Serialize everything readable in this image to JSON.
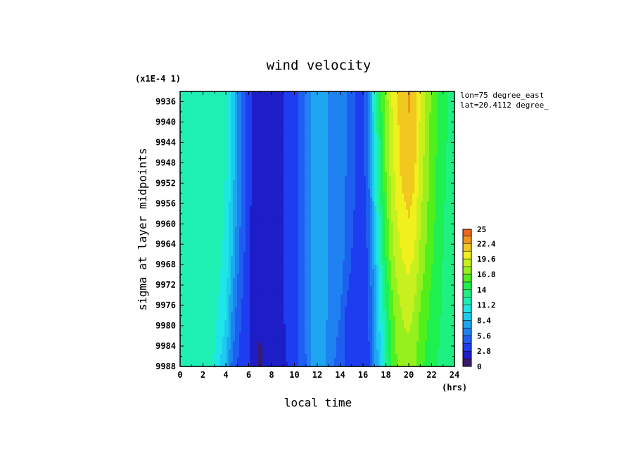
{
  "chart_data": {
    "type": "heatmap",
    "title": "wind velocity",
    "xlabel": "local time",
    "x_units": "(hrs)",
    "ylabel": "sigma at layer midpoints",
    "y_scale_note": "(x1E-4 1)",
    "annotations": [
      "lon=75 degree_east",
      "lat=20.4112 degree_"
    ],
    "xlim": [
      0,
      24
    ],
    "ylim": [
      9988,
      9934
    ],
    "x_ticks": [
      "0",
      "2",
      "4",
      "6",
      "8",
      "10",
      "12",
      "14",
      "16",
      "18",
      "20",
      "22",
      "24"
    ],
    "y_ticks": [
      "9936",
      "9940",
      "9944",
      "9948",
      "9952",
      "9956",
      "9960",
      "9964",
      "9968",
      "9972",
      "9976",
      "9980",
      "9984",
      "9988"
    ],
    "colorbar": {
      "min": 0,
      "max": 25,
      "tick_labels": [
        "25",
        "22.4",
        "19.6",
        "16.8",
        "14",
        "11.2",
        "8.4",
        "5.6",
        "2.8",
        "0"
      ],
      "levels": [
        0,
        1.4,
        2.8,
        4.2,
        5.6,
        7,
        8.4,
        9.8,
        11.2,
        12.6,
        14,
        15.4,
        16.8,
        18.2,
        19.6,
        21,
        22.4,
        23.8,
        25
      ],
      "colors": [
        "#3a1a6a",
        "#1e1ec8",
        "#1e3cf0",
        "#1e5ef0",
        "#1e82f0",
        "#1ea6f0",
        "#1ecaf0",
        "#1ee6e6",
        "#1ef0b4",
        "#1ef082",
        "#1ef050",
        "#50f01e",
        "#96f01e",
        "#c8f01e",
        "#f0f01e",
        "#f0c81e",
        "#f0961e",
        "#f0641e",
        "#e63c1e"
      ]
    },
    "x": [
      0,
      1,
      2,
      3,
      4,
      4.5,
      5,
      5.5,
      6,
      6.5,
      7,
      7.5,
      8,
      9,
      10,
      10.5,
      11,
      11.5,
      12,
      12.5,
      13,
      13.5,
      14,
      14.5,
      15,
      15.5,
      16,
      16.5,
      17,
      17.5,
      18,
      18.5,
      19,
      19.5,
      20,
      20.5,
      21,
      22,
      23,
      24
    ],
    "y": [
      9934,
      9950,
      9966,
      9976,
      9988
    ],
    "values_by_sigma": {
      "9934": [
        12.5,
        12.5,
        12.5,
        11.8,
        11.2,
        9.5,
        7,
        5.2,
        3.2,
        2.3,
        1.8,
        2.1,
        2.6,
        2.8,
        3,
        4.5,
        5.8,
        7.2,
        8,
        7.8,
        6.8,
        6.5,
        6.8,
        5.6,
        4.8,
        4,
        3.6,
        6,
        11.2,
        15,
        17.5,
        19.6,
        21,
        22,
        22.6,
        22,
        19.6,
        16.5,
        14.5,
        13.5
      ],
      "9950": [
        12.5,
        12.5,
        12.5,
        11.8,
        11.2,
        9.5,
        7,
        5.2,
        3.2,
        2.3,
        1.7,
        2.1,
        2.6,
        2.8,
        3,
        4.5,
        5.8,
        7.2,
        8,
        7.8,
        6.8,
        6.5,
        6.8,
        5.6,
        4.8,
        4,
        3.6,
        5.6,
        10,
        14,
        16.8,
        18.8,
        20.5,
        21.4,
        22,
        21.3,
        19,
        16.2,
        14.2,
        13.4
      ],
      "9966": [
        12.5,
        12.5,
        12.5,
        11.8,
        11,
        8.6,
        6.2,
        4.6,
        3,
        2.2,
        1.6,
        2,
        2.6,
        2.8,
        3,
        4.5,
        5.8,
        7.2,
        8,
        7.8,
        6.8,
        6.5,
        6.6,
        5.2,
        4.2,
        3.6,
        3.4,
        4.5,
        8,
        12,
        15.4,
        17.5,
        19,
        19.8,
        20.2,
        19.6,
        17.8,
        15.6,
        14,
        13.3
      ],
      "9976": [
        12.5,
        12.5,
        12.5,
        11.8,
        10.2,
        7.2,
        5.2,
        4,
        3,
        2.2,
        1.4,
        2,
        2.6,
        2.8,
        3,
        4.5,
        5.8,
        7.2,
        8,
        7.8,
        6.8,
        6.2,
        5.8,
        4.2,
        3.5,
        3.2,
        3.2,
        4.2,
        7,
        10.5,
        14,
        16.2,
        17.8,
        18.5,
        18.8,
        18.2,
        16.8,
        15,
        13.8,
        13.2
      ],
      "9988": [
        12.5,
        12.5,
        12.4,
        11.2,
        8.4,
        5.6,
        4.2,
        3.4,
        2.8,
        2,
        1.2,
        1.8,
        2.4,
        2.7,
        3,
        4.4,
        5.6,
        7,
        7.8,
        7.4,
        6.2,
        5.6,
        4.8,
        3.8,
        3.2,
        3,
        3,
        4,
        6.5,
        9.8,
        13,
        15.4,
        16.8,
        17.4,
        17.6,
        17,
        15.8,
        14.4,
        13.6,
        13.1
      ]
    }
  }
}
